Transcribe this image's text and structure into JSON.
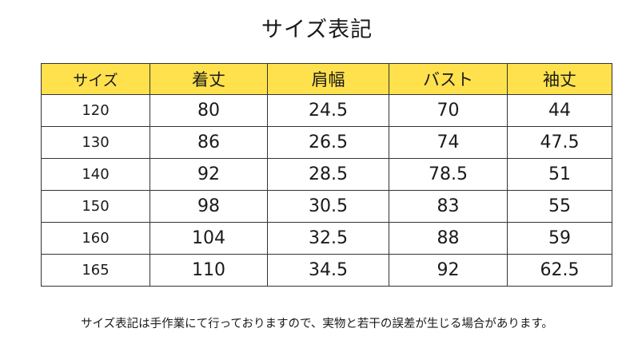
{
  "title": "サイズ表記",
  "table": {
    "headers": [
      "サイズ",
      "着丈",
      "肩幅",
      "バスト",
      "袖丈"
    ],
    "rows": [
      [
        "120",
        "80",
        "24.5",
        "70",
        "44"
      ],
      [
        "130",
        "86",
        "26.5",
        "74",
        "47.5"
      ],
      [
        "140",
        "92",
        "28.5",
        "78.5",
        "51"
      ],
      [
        "150",
        "98",
        "30.5",
        "83",
        "55"
      ],
      [
        "160",
        "104",
        "32.5",
        "88",
        "59"
      ],
      [
        "165",
        "110",
        "34.5",
        "92",
        "62.5"
      ]
    ]
  },
  "colors": {
    "header_background": "#ffe14d",
    "border": "#333333",
    "text": "#1a1a1a"
  },
  "note": "サイズ表記は手作業にて行っておりますので、実物と若干の誤差が生じる場合があります。"
}
